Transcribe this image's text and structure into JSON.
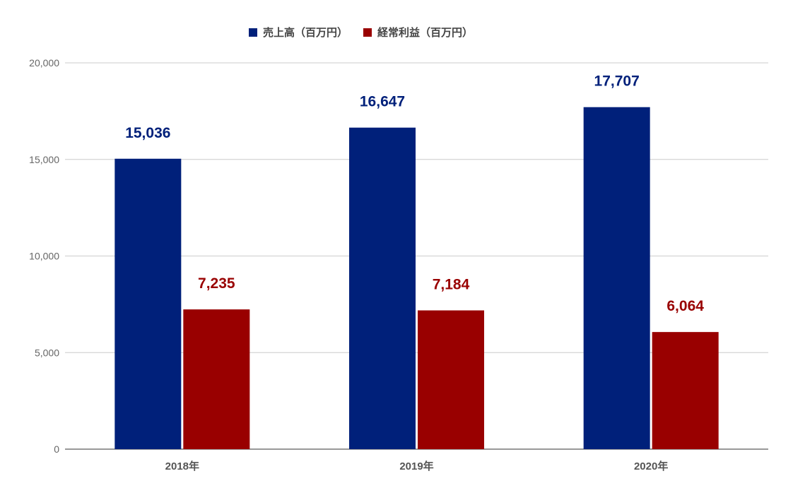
{
  "chart_data": {
    "type": "bar",
    "categories": [
      "2018年",
      "2019年",
      "2020年"
    ],
    "series": [
      {
        "name": "売上高（百万円）",
        "values": [
          15036,
          16647,
          17707
        ],
        "color": "#00207a"
      },
      {
        "name": "経常利益（百万円）",
        "values": [
          7235,
          7184,
          6064
        ],
        "color": "#990000"
      }
    ],
    "data_labels": [
      [
        "15,036",
        "16,647",
        "17,707"
      ],
      [
        "7,235",
        "7,184",
        "6,064"
      ]
    ],
    "y_ticks": [
      0,
      5000,
      10000,
      15000,
      20000
    ],
    "y_tick_labels": [
      "0",
      "5,000",
      "10,000",
      "15,000",
      "20,000"
    ],
    "ylim": [
      0,
      20000
    ],
    "grid": true,
    "legend_position": "top-center",
    "title": "",
    "xlabel": "",
    "ylabel": ""
  }
}
